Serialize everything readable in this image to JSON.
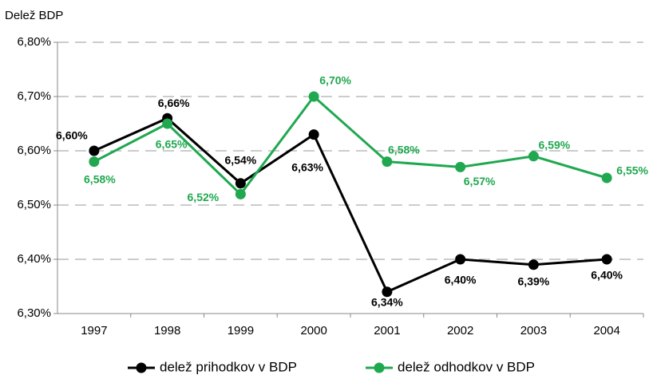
{
  "chart_data": {
    "type": "line",
    "y_axis_label": "Delež BDP",
    "categories": [
      "1997",
      "1998",
      "1999",
      "2000",
      "2001",
      "2002",
      "2003",
      "2004"
    ],
    "series": [
      {
        "name": "delež prihodkov v BDP",
        "color": "#000000",
        "values": [
          6.6,
          6.66,
          6.54,
          6.63,
          6.34,
          6.4,
          6.39,
          6.4
        ],
        "value_labels": [
          "6,60%",
          "6,66%",
          "6,54%",
          "6,63%",
          "6,34%",
          "6,40%",
          "6,39%",
          "6,40%"
        ]
      },
      {
        "name": "delež odhodkov v BDP",
        "color": "#1fa84f",
        "values": [
          6.58,
          6.65,
          6.52,
          6.7,
          6.58,
          6.57,
          6.59,
          6.55
        ],
        "value_labels": [
          "6,58%",
          "6,65%",
          "6,52%",
          "6,70%",
          "6,58%",
          "6,57%",
          "6,59%",
          "6,55%"
        ]
      }
    ],
    "ylim": [
      6.3,
      6.8
    ],
    "yticks": [
      {
        "value": 6.3,
        "label": "6,30%"
      },
      {
        "value": 6.4,
        "label": "6,40%"
      },
      {
        "value": 6.5,
        "label": "6,50%"
      },
      {
        "value": 6.6,
        "label": "6,60%"
      },
      {
        "value": 6.7,
        "label": "6,70%"
      },
      {
        "value": 6.8,
        "label": "6,80%"
      }
    ],
    "grid": true,
    "legend": "bottom"
  }
}
